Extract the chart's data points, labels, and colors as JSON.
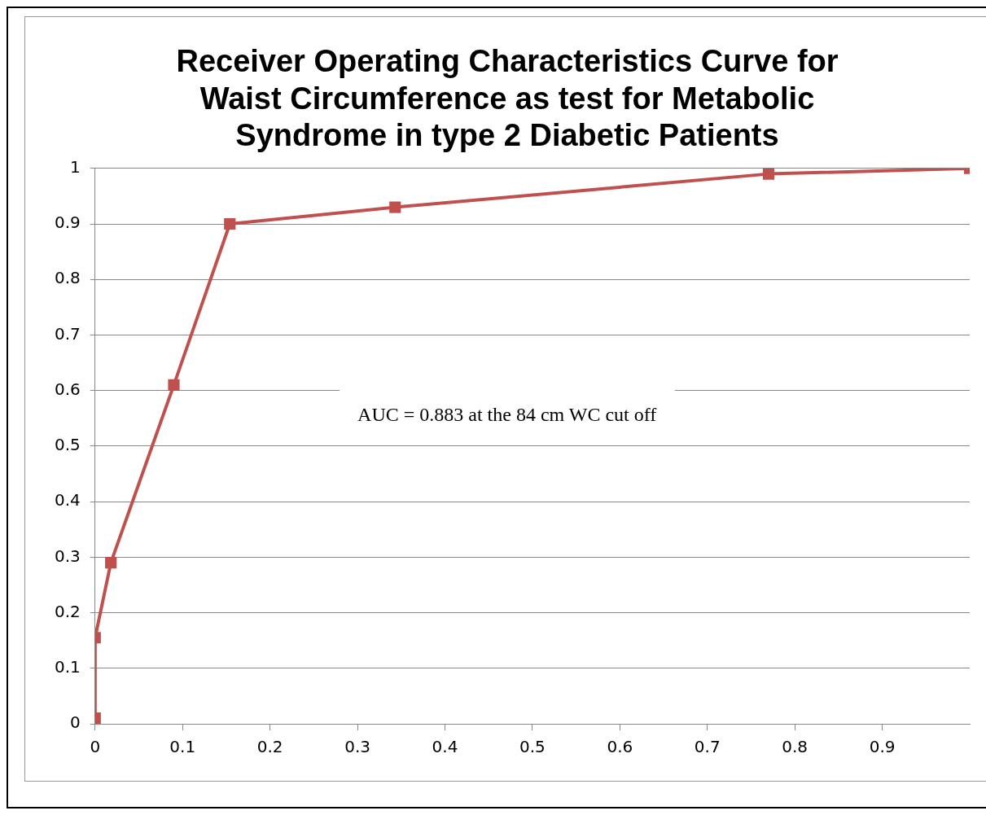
{
  "chart_data": {
    "type": "line",
    "title": "Receiver Operating Characteristics Curve for Waist Circumference as test for Metabolic Syndrome in type 2 Diabetic Patients",
    "series": [
      {
        "color": "#c0504d",
        "x": [
          0,
          0,
          0.018,
          0.09,
          0.154,
          0.343,
          0.77,
          1
        ],
        "values": [
          0.01,
          0.155,
          0.29,
          0.61,
          0.9,
          0.93,
          0.99,
          1
        ]
      }
    ],
    "xlim": [
      0,
      1
    ],
    "xticks": [
      0,
      0.1,
      0.2,
      0.3,
      0.4,
      0.5,
      0.6,
      0.7,
      0.8,
      0.9
    ],
    "ylim": [
      0,
      1
    ],
    "yticks": [
      0,
      0.1,
      0.2,
      0.3,
      0.4,
      0.5,
      0.6,
      0.7,
      0.8,
      0.9,
      1
    ],
    "grid": "y",
    "legend": false,
    "marker": "square",
    "line_style": "solid",
    "annotations": [
      "AUC = 0.883 at the 84 cm WC cut off"
    ]
  }
}
